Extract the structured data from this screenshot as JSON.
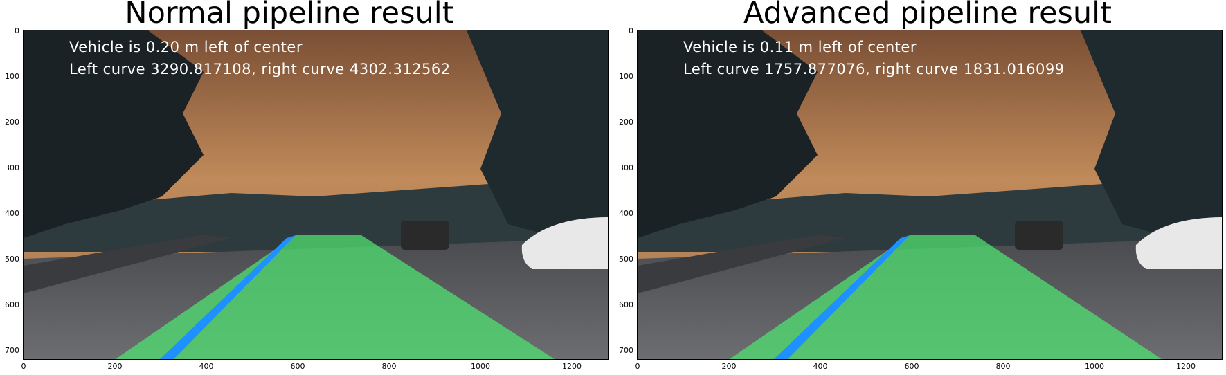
{
  "panels": [
    {
      "title": "Normal pipeline result",
      "overlay_line1": "Vehicle is 0.20 m left of center",
      "overlay_line2": "Left curve 3290.817108, right curve 4302.312562"
    },
    {
      "title": "Advanced pipeline result",
      "overlay_line1": "Vehicle is 0.11 m left of center",
      "overlay_line2": "Left curve 1757.877076, right curve 1831.016099"
    }
  ],
  "y_ticks": [
    "0",
    "100",
    "200",
    "300",
    "400",
    "500",
    "600",
    "700"
  ],
  "x_ticks": [
    "0",
    "200",
    "400",
    "600",
    "800",
    "1000",
    "1200"
  ],
  "colors": {
    "sky": "#b07a4a",
    "lane_fill": "#4fe070",
    "lane_line": "#1e90ff",
    "road": "#5e5f62"
  }
}
